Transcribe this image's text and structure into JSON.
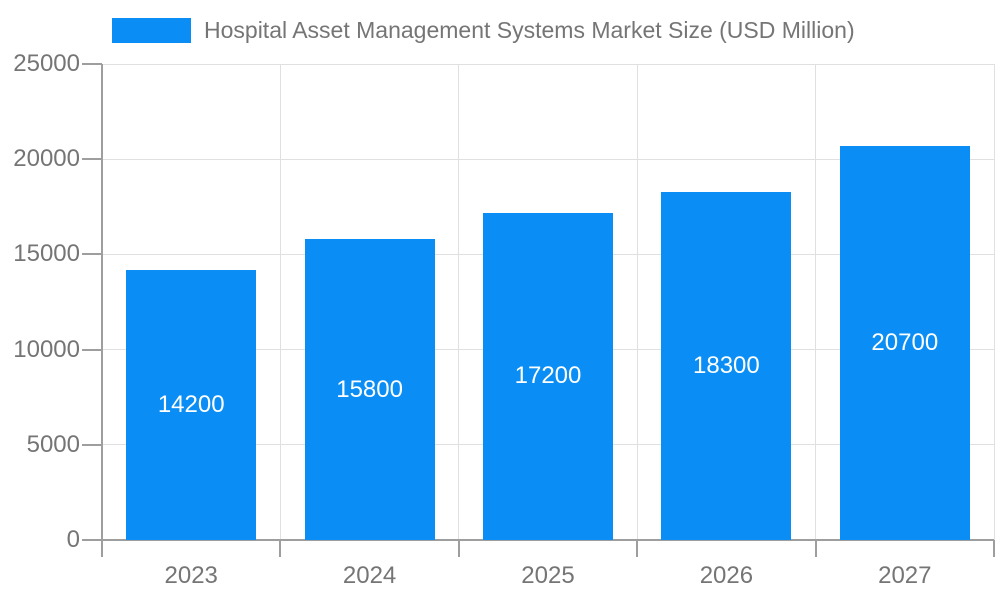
{
  "legend": {
    "label": "Hospital Asset Management Systems Market Size (USD Million)",
    "position": "top-left"
  },
  "chart_data": {
    "type": "bar",
    "title": "Hospital Asset Management Systems Market Size (USD Million)",
    "categories": [
      "2023",
      "2024",
      "2025",
      "2026",
      "2027"
    ],
    "values": [
      14200,
      15800,
      17200,
      18300,
      20700
    ],
    "value_labels_shown": true,
    "xlabel": "",
    "ylabel": "",
    "ylim": [
      0,
      25000
    ],
    "y_ticks": [
      0,
      5000,
      10000,
      15000,
      20000,
      25000
    ],
    "grid": "horizontal-and-vertical",
    "legend_position": "top-left",
    "colors": {
      "bar": "#0a8ef5",
      "value_label": "#ffffff",
      "axis": "#9e9e9e",
      "gridline": "#e0e0e0",
      "tick_label": "#757575",
      "title": "#757575",
      "background": "#ffffff"
    }
  }
}
